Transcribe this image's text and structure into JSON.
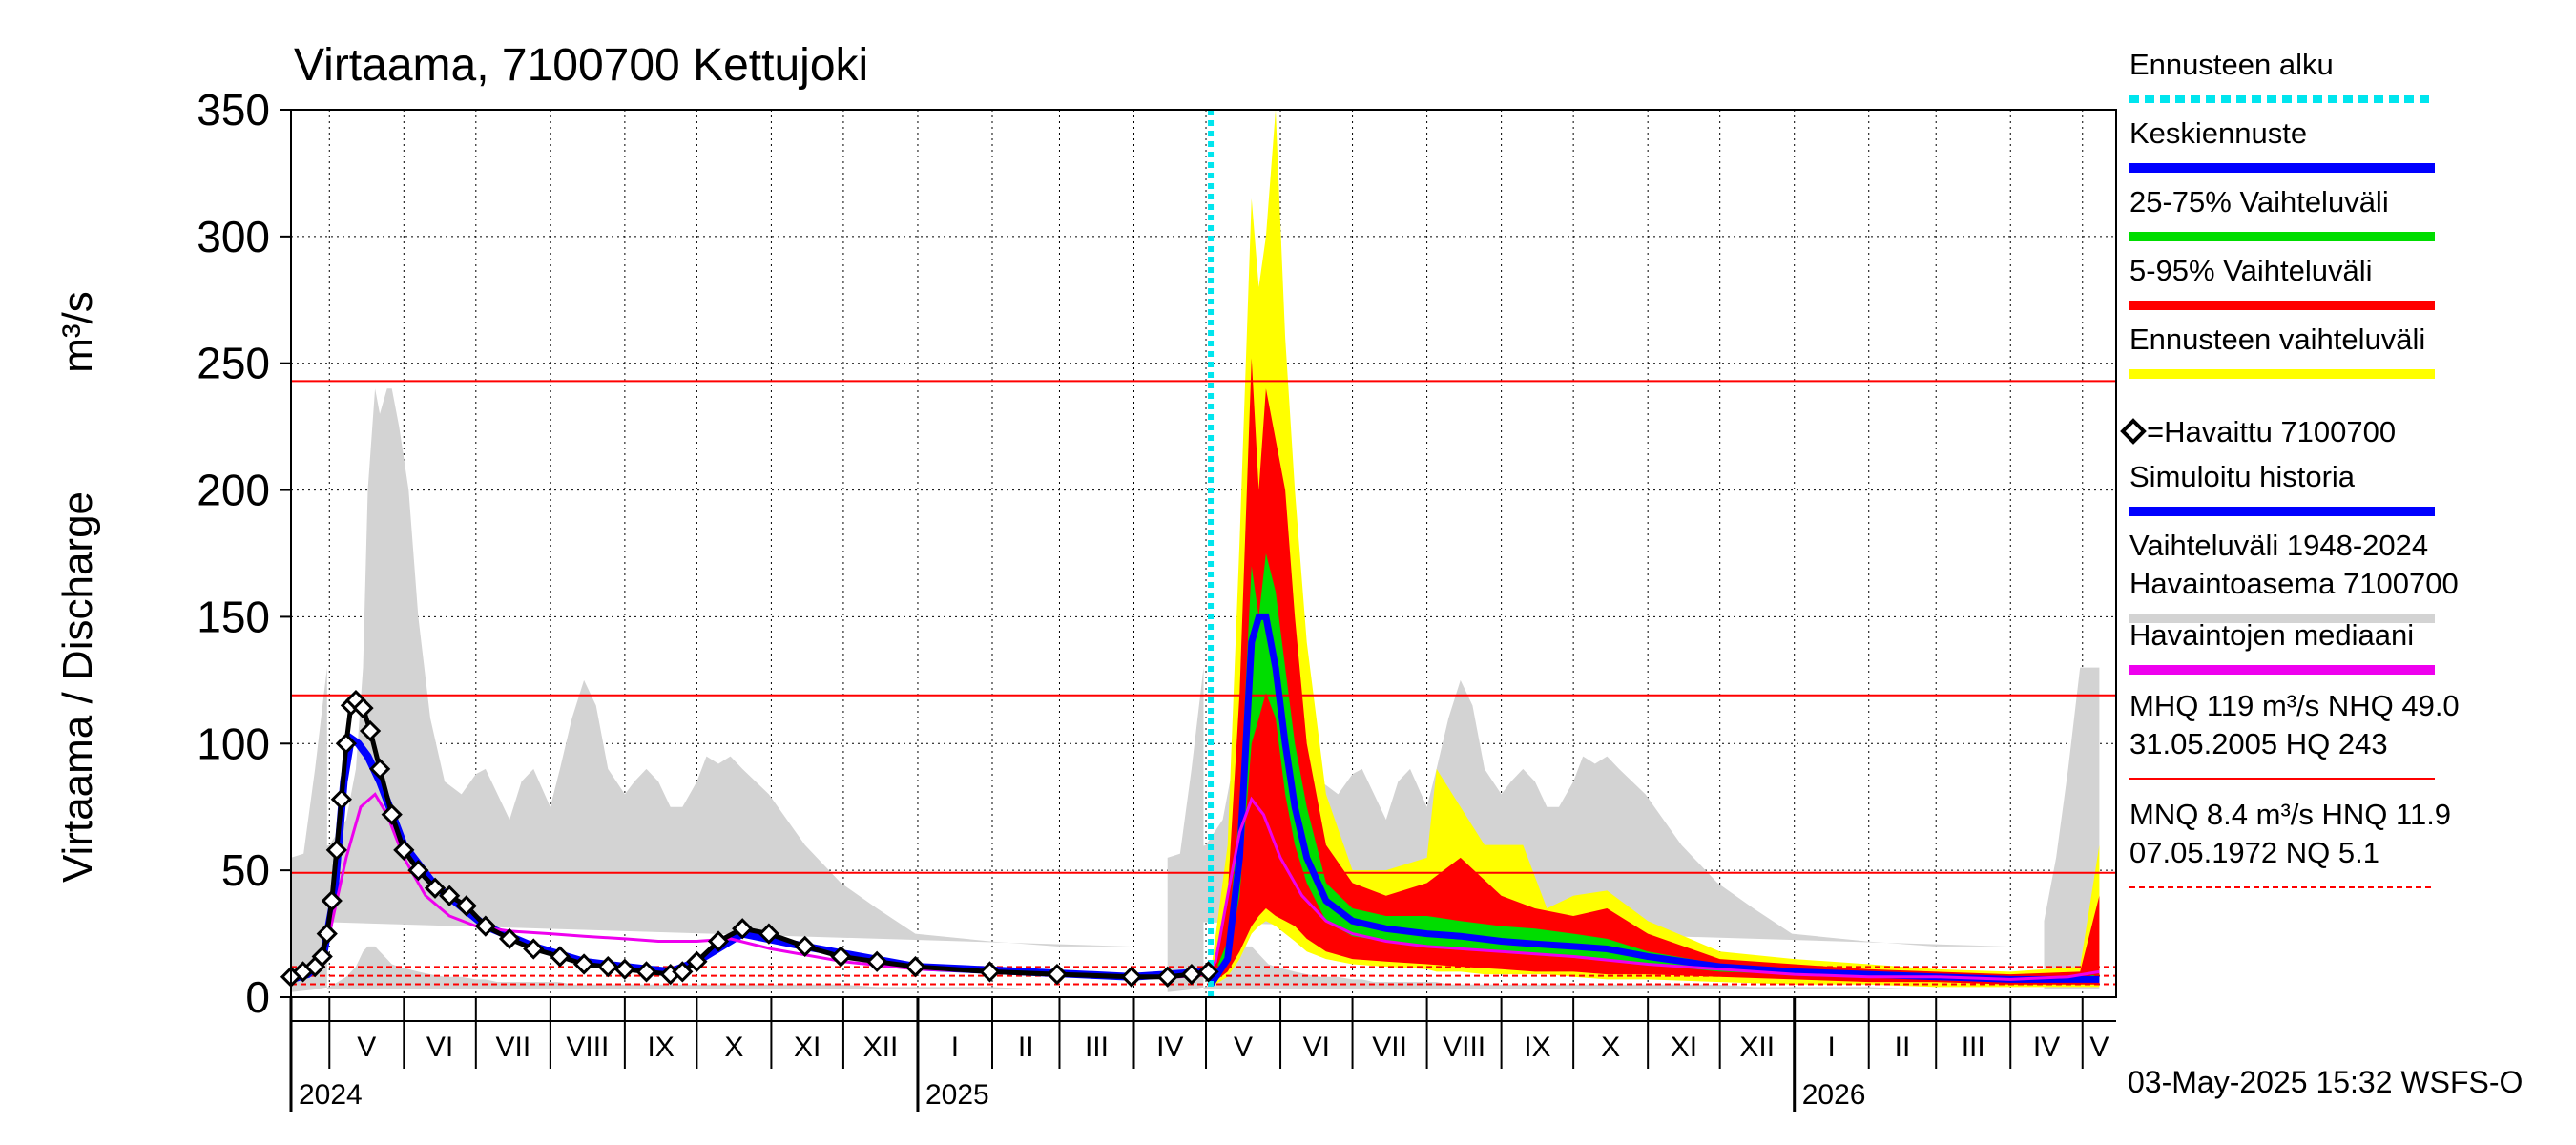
{
  "chart_data": {
    "type": "area",
    "title": "Virtaama, 7100700 Kettujoki",
    "ylabel": "Virtaama / Discharge",
    "yunit": "m³/s",
    "ylim": [
      0,
      350
    ],
    "yticks": [
      0,
      50,
      100,
      150,
      200,
      250,
      300,
      350
    ],
    "xlim": [
      "2024-04-15",
      "2026-05-15"
    ],
    "month_labels": [
      {
        "label": "V",
        "start": "2024-05-01"
      },
      {
        "label": "VI",
        "start": "2024-06-01"
      },
      {
        "label": "VII",
        "start": "2024-07-01"
      },
      {
        "label": "VIII",
        "start": "2024-08-01"
      },
      {
        "label": "IX",
        "start": "2024-09-01"
      },
      {
        "label": "X",
        "start": "2024-10-01"
      },
      {
        "label": "XI",
        "start": "2024-11-01"
      },
      {
        "label": "XII",
        "start": "2024-12-01"
      },
      {
        "label": "I",
        "start": "2025-01-01"
      },
      {
        "label": "II",
        "start": "2025-02-01"
      },
      {
        "label": "III",
        "start": "2025-03-01"
      },
      {
        "label": "IV",
        "start": "2025-04-01"
      },
      {
        "label": "V",
        "start": "2025-05-01"
      },
      {
        "label": "VI",
        "start": "2025-06-01"
      },
      {
        "label": "VII",
        "start": "2025-07-01"
      },
      {
        "label": "VIII",
        "start": "2025-08-01"
      },
      {
        "label": "IX",
        "start": "2025-09-01"
      },
      {
        "label": "X",
        "start": "2025-10-01"
      },
      {
        "label": "XI",
        "start": "2025-11-01"
      },
      {
        "label": "XII",
        "start": "2025-12-01"
      },
      {
        "label": "I",
        "start": "2026-01-01"
      },
      {
        "label": "II",
        "start": "2026-02-01"
      },
      {
        "label": "III",
        "start": "2026-03-01"
      },
      {
        "label": "IV",
        "start": "2026-04-01"
      },
      {
        "label": "V",
        "start": "2026-05-01"
      }
    ],
    "year_labels": [
      {
        "label": "2024",
        "date": "2024-04-15"
      },
      {
        "label": "2025",
        "date": "2025-01-01"
      },
      {
        "label": "2026",
        "date": "2026-01-01"
      }
    ],
    "forecast_start": "2025-05-03",
    "reference_lines": [
      {
        "name": "HQ",
        "value": 243,
        "style": "solid",
        "color": "#ff0000"
      },
      {
        "name": "MHQ",
        "value": 119,
        "style": "solid",
        "color": "#ff0000"
      },
      {
        "name": "NHQ",
        "value": 49,
        "style": "solid",
        "color": "#ff0000"
      },
      {
        "name": "HNQ",
        "value": 11.9,
        "style": "dashed",
        "color": "#ff0000"
      },
      {
        "name": "MNQ",
        "value": 8.4,
        "style": "dashed",
        "color": "#ff0000"
      },
      {
        "name": "NQ",
        "value": 5.1,
        "style": "dashed",
        "color": "#ff0000"
      }
    ],
    "historical_range": {
      "name": "Vaihteluväli 1948-2024 Havaintoasema 7100700",
      "color": "#d3d3d3",
      "dates": [
        "04-15",
        "04-25",
        "05-01",
        "05-08",
        "05-12",
        "05-15",
        "05-17",
        "05-20",
        "05-22",
        "05-25",
        "05-27",
        "05-30",
        "06-03",
        "06-07",
        "06-12",
        "06-18",
        "06-25",
        "07-01",
        "07-05",
        "07-10",
        "07-15",
        "07-20",
        "07-25",
        "08-01",
        "08-05",
        "08-10",
        "08-15",
        "08-20",
        "08-25",
        "09-01",
        "09-05",
        "09-10",
        "09-15",
        "09-20",
        "09-25",
        "10-01",
        "10-05",
        "10-10",
        "10-15",
        "10-20",
        "10-31",
        "11-15",
        "11-30",
        "12-15",
        "12-31",
        "01-31",
        "02-28",
        "03-31",
        "04-15",
        "04-20",
        "04-25",
        "04-30"
      ],
      "upper": [
        55,
        58,
        60,
        70,
        90,
        130,
        200,
        240,
        230,
        240,
        240,
        225,
        200,
        150,
        110,
        85,
        80,
        88,
        90,
        80,
        70,
        85,
        90,
        75,
        90,
        110,
        125,
        115,
        90,
        80,
        85,
        90,
        85,
        75,
        75,
        85,
        95,
        92,
        95,
        90,
        80,
        60,
        45,
        35,
        25,
        22,
        20,
        20,
        30,
        55,
        90,
        130
      ],
      "lower": [
        2,
        3,
        4,
        8,
        12,
        18,
        20,
        20,
        18,
        15,
        13,
        12,
        11,
        10,
        9,
        8,
        8,
        7,
        7,
        6,
        6,
        6,
        6,
        6,
        6,
        5,
        5,
        5,
        5,
        5,
        5,
        5,
        5,
        5,
        5,
        5,
        5,
        5,
        5,
        5,
        5,
        5,
        5,
        4,
        4,
        4,
        3,
        3,
        3,
        3,
        3,
        3
      ]
    },
    "forecast_range": {
      "name": "Ennusteen vaihteluväli",
      "color": "#ffff00",
      "x": [
        "2025-05-03",
        "2025-05-10",
        "2025-05-15",
        "2025-05-20",
        "2025-05-23",
        "2025-05-26",
        "2025-05-30",
        "2025-06-03",
        "2025-06-07",
        "2025-06-12",
        "2025-06-20",
        "2025-07-01",
        "2025-07-15",
        "2025-08-01",
        "2025-08-05",
        "2025-08-15",
        "2025-08-25",
        "2025-09-10",
        "2025-09-20",
        "2025-10-01",
        "2025-10-15",
        "2025-11-01",
        "2025-12-01",
        "2026-01-01",
        "2026-02-01",
        "2026-03-01",
        "2026-04-01",
        "2026-04-30",
        "2026-05-08"
      ],
      "upper": [
        10,
        60,
        180,
        315,
        280,
        300,
        350,
        260,
        200,
        140,
        80,
        50,
        50,
        55,
        90,
        75,
        60,
        60,
        35,
        40,
        42,
        30,
        18,
        15,
        13,
        11,
        10,
        12,
        60
      ],
      "lower": [
        4,
        8,
        15,
        25,
        28,
        30,
        28,
        25,
        22,
        18,
        15,
        13,
        12,
        11,
        10,
        10,
        9,
        9,
        9,
        8,
        7,
        7,
        6,
        5,
        5,
        4,
        4,
        4,
        4
      ]
    },
    "range_5_95": {
      "name": "5-95% Vaihteluväli",
      "color": "#ff0000",
      "x": [
        "2025-05-03",
        "2025-05-10",
        "2025-05-15",
        "2025-05-20",
        "2025-05-23",
        "2025-05-26",
        "2025-05-30",
        "2025-06-03",
        "2025-06-07",
        "2025-06-12",
        "2025-06-20",
        "2025-07-01",
        "2025-07-15",
        "2025-08-01",
        "2025-08-15",
        "2025-09-01",
        "2025-09-15",
        "2025-10-01",
        "2025-10-15",
        "2025-11-01",
        "2025-12-01",
        "2026-01-01",
        "2026-02-01",
        "2026-03-01",
        "2026-04-01",
        "2026-04-30",
        "2026-05-08"
      ],
      "upper": [
        8,
        40,
        120,
        252,
        200,
        240,
        220,
        200,
        150,
        100,
        60,
        45,
        40,
        45,
        55,
        40,
        35,
        32,
        35,
        25,
        15,
        13,
        11,
        10,
        9,
        10,
        40
      ],
      "lower": [
        5,
        10,
        18,
        28,
        32,
        35,
        32,
        30,
        28,
        23,
        18,
        15,
        14,
        13,
        12,
        11,
        10,
        10,
        9,
        9,
        8,
        7,
        6,
        6,
        5,
        5,
        5
      ]
    },
    "range_25_75": {
      "name": "25-75% Vaihteluväli",
      "color": "#00dd00",
      "x": [
        "2025-05-03",
        "2025-05-10",
        "2025-05-15",
        "2025-05-20",
        "2025-05-23",
        "2025-05-26",
        "2025-05-30",
        "2025-06-03",
        "2025-06-07",
        "2025-06-12",
        "2025-06-20",
        "2025-07-01",
        "2025-07-15",
        "2025-08-01",
        "2025-08-15",
        "2025-09-01",
        "2025-09-15",
        "2025-10-01",
        "2025-10-15",
        "2025-11-01",
        "2025-12-01",
        "2026-01-01",
        "2026-02-01",
        "2026-03-01",
        "2026-04-01",
        "2026-04-30",
        "2026-05-08"
      ],
      "upper": [
        6,
        22,
        75,
        170,
        150,
        175,
        160,
        130,
        100,
        75,
        45,
        35,
        32,
        32,
        30,
        28,
        27,
        25,
        23,
        18,
        13,
        11,
        10,
        9,
        8,
        8,
        9
      ],
      "lower": [
        5,
        14,
        40,
        100,
        110,
        120,
        110,
        80,
        60,
        45,
        30,
        24,
        22,
        20,
        19,
        18,
        17,
        16,
        15,
        13,
        10,
        9,
        8,
        7,
        7,
        6,
        6
      ]
    },
    "median_forecast": {
      "name": "Keskiennuste",
      "color": "#0000ff",
      "x": [
        "2025-05-03",
        "2025-05-10",
        "2025-05-15",
        "2025-05-20",
        "2025-05-23",
        "2025-05-26",
        "2025-05-30",
        "2025-06-03",
        "2025-06-07",
        "2025-06-12",
        "2025-06-20",
        "2025-07-01",
        "2025-07-15",
        "2025-08-01",
        "2025-08-15",
        "2025-09-01",
        "2025-09-15",
        "2025-10-01",
        "2025-10-15",
        "2025-11-01",
        "2025-12-01",
        "2026-01-01",
        "2026-02-01",
        "2026-03-01",
        "2026-04-01",
        "2026-04-30",
        "2026-05-08"
      ],
      "y": [
        5,
        15,
        55,
        140,
        150,
        150,
        130,
        100,
        75,
        55,
        38,
        30,
        27,
        25,
        24,
        22,
        21,
        20,
        19,
        16,
        12,
        10,
        9,
        8,
        7,
        7,
        7
      ]
    },
    "observed": {
      "name": "=Havaittu 7100700",
      "color": "#000000",
      "x": [
        "2024-04-15",
        "2024-04-20",
        "2024-04-25",
        "2024-04-28",
        "2024-04-30",
        "2024-05-02",
        "2024-05-04",
        "2024-05-06",
        "2024-05-08",
        "2024-05-10",
        "2024-05-12",
        "2024-05-15",
        "2024-05-18",
        "2024-05-22",
        "2024-05-27",
        "2024-06-01",
        "2024-06-07",
        "2024-06-14",
        "2024-06-20",
        "2024-06-27",
        "2024-07-05",
        "2024-07-15",
        "2024-07-25",
        "2024-08-05",
        "2024-08-15",
        "2024-08-25",
        "2024-09-01",
        "2024-09-10",
        "2024-09-20",
        "2024-09-25",
        "2024-10-01",
        "2024-10-10",
        "2024-10-20",
        "2024-10-31",
        "2024-11-15",
        "2024-11-30",
        "2024-12-15",
        "2024-12-31",
        "2025-01-31",
        "2025-02-28",
        "2025-03-31",
        "2025-04-15",
        "2025-04-25",
        "2025-05-02"
      ],
      "y": [
        8,
        10,
        12,
        16,
        25,
        38,
        58,
        78,
        100,
        115,
        117,
        114,
        105,
        90,
        72,
        58,
        50,
        43,
        40,
        36,
        28,
        23,
        19,
        16,
        13,
        12,
        11,
        10,
        9,
        10,
        14,
        22,
        27,
        25,
        20,
        16,
        14,
        12,
        10,
        9,
        8,
        8,
        9,
        10
      ]
    },
    "simulated": {
      "name": "Simuloitu historia",
      "color": "#0000ff",
      "x": [
        "2024-04-15",
        "2024-04-22",
        "2024-04-28",
        "2024-05-03",
        "2024-05-07",
        "2024-05-10",
        "2024-05-13",
        "2024-05-17",
        "2024-05-22",
        "2024-06-01",
        "2024-06-14",
        "2024-07-05",
        "2024-07-25",
        "2024-08-15",
        "2024-09-01",
        "2024-09-20",
        "2024-10-01",
        "2024-10-20",
        "2024-11-15",
        "2024-12-31",
        "2025-03-31",
        "2025-05-02"
      ],
      "y": [
        7,
        9,
        14,
        40,
        85,
        102,
        100,
        95,
        85,
        60,
        44,
        28,
        20,
        14,
        12,
        10,
        14,
        25,
        20,
        12,
        8,
        10
      ]
    },
    "median_history": {
      "name": "Havaintojen mediaani",
      "color": "#ee00ee",
      "x": [
        "2024-04-15",
        "2024-04-25",
        "2024-05-01",
        "2024-05-08",
        "2024-05-14",
        "2024-05-20",
        "2024-05-25",
        "2024-06-01",
        "2024-06-10",
        "2024-06-20",
        "2024-07-01",
        "2024-07-15",
        "2024-08-01",
        "2024-08-15",
        "2024-09-01",
        "2024-09-15",
        "2024-10-01",
        "2024-10-15",
        "2024-11-01",
        "2024-12-01",
        "2025-01-01",
        "2025-02-01",
        "2025-03-01",
        "2025-04-01",
        "2025-04-20",
        "2025-05-01",
        "2025-05-05",
        "2025-05-10",
        "2025-05-15",
        "2025-05-20",
        "2025-05-25",
        "2025-06-01",
        "2025-06-10",
        "2025-06-20",
        "2025-07-01",
        "2025-07-15",
        "2025-08-01",
        "2025-09-01",
        "2025-10-01",
        "2025-11-01",
        "2025-12-01",
        "2026-01-01",
        "2026-02-01",
        "2026-03-01",
        "2026-04-01",
        "2026-04-25",
        "2026-05-08"
      ],
      "y": [
        8,
        12,
        25,
        55,
        75,
        80,
        72,
        55,
        40,
        32,
        28,
        26,
        25,
        24,
        23,
        22,
        22,
        23,
        19,
        14,
        11,
        10,
        9,
        8,
        8,
        9,
        14,
        40,
        65,
        78,
        72,
        55,
        40,
        30,
        25,
        22,
        20,
        18,
        16,
        13,
        11,
        9,
        8,
        8,
        7,
        8,
        10
      ]
    },
    "legend": [
      {
        "text": "Ennusteen alku",
        "color": "#00e5ee",
        "style": "dotted"
      },
      {
        "text": "Keskiennuste",
        "color": "#0000ff",
        "style": "solid"
      },
      {
        "text": "25-75% Vaihteluväli",
        "color": "#00dd00",
        "style": "solid"
      },
      {
        "text": "5-95% Vaihteluväli",
        "color": "#ff0000",
        "style": "solid"
      },
      {
        "text": "Ennusteen vaihteluväli",
        "color": "#ffff00",
        "style": "solid"
      },
      {
        "text": "=Havaittu 7100700",
        "color": "#000000",
        "style": "marker"
      },
      {
        "text": "Simuloitu historia",
        "color": "#0000ff",
        "style": "solid"
      },
      {
        "text": "Vaihteluväli 1948-2024",
        "text2": " Havaintoasema 7100700",
        "color": "#d3d3d3",
        "style": "solid"
      },
      {
        "text": "Havaintojen mediaani",
        "color": "#ee00ee",
        "style": "solid"
      },
      {
        "text": "MHQ  119 m³/s NHQ 49.0",
        "text2": "31.05.2005 HQ  243",
        "color": "#ff0000",
        "style": "thin"
      },
      {
        "text": "MNQ  8.4 m³/s HNQ 11.9",
        "text2": "07.05.1972 NQ  5.1",
        "color": "#ff0000",
        "style": "dashed"
      }
    ],
    "footer": "03-May-2025 15:32 WSFS-O"
  }
}
